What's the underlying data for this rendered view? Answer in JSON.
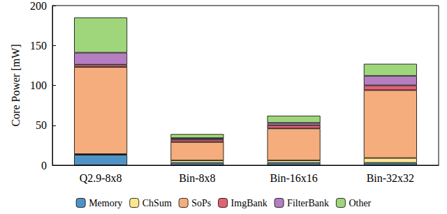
{
  "chart_data": {
    "type": "bar",
    "stacked": true,
    "y_label": "Core Power [mW]",
    "categories": [
      "Q2.9-8x8",
      "Bin-8x8",
      "Bin-16x16",
      "Bin-32x32"
    ],
    "series": [
      {
        "name": "Memory",
        "color": "#4f93c4",
        "values": [
          13,
          3,
          3,
          3
        ]
      },
      {
        "name": "ChSum",
        "color": "#fde68f",
        "values": [
          1,
          3,
          3,
          6
        ]
      },
      {
        "name": "SoPs",
        "color": "#f5ad7d",
        "values": [
          109,
          23,
          40,
          85
        ]
      },
      {
        "name": "ImgBank",
        "color": "#df6473",
        "values": [
          3,
          3,
          4,
          6
        ]
      },
      {
        "name": "FilterBank",
        "color": "#b57ec1",
        "values": [
          15,
          2,
          3,
          12
        ]
      },
      {
        "name": "Other",
        "color": "#9fd67b",
        "values": [
          44,
          5,
          9,
          15
        ]
      }
    ],
    "ylim": [
      0,
      200
    ],
    "yticks": [
      0,
      50,
      100,
      150,
      200
    ],
    "grid": false,
    "legend": "bottom"
  }
}
